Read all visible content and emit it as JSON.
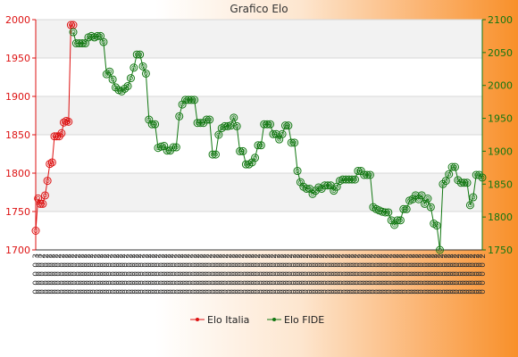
{
  "chart_data": {
    "type": "line",
    "title": "Grafico Elo",
    "legend_position": "bottom",
    "grid": true,
    "y_left": {
      "min": 1700,
      "max": 2000,
      "ticks": [
        1700,
        1750,
        1800,
        1850,
        1900,
        1950,
        2000
      ]
    },
    "y_right": {
      "min": 1750,
      "max": 2100,
      "ticks": [
        1750,
        1800,
        1850,
        1900,
        1950,
        2000,
        2050,
        2100
      ]
    },
    "series": [
      {
        "name": "Elo Italia",
        "axis": "left",
        "color": "#dd1111",
        "values": [
          1725,
          1767,
          1760,
          1760,
          1771,
          1790,
          1812,
          1814,
          1848,
          1848,
          1848,
          1852,
          1866,
          1868,
          1867,
          1993,
          1993
        ]
      },
      {
        "name": "Elo FIDE",
        "axis": "right",
        "color": "#117711",
        "values": [
          2081,
          2064,
          2064,
          2064,
          2064,
          2073,
          2075,
          2073,
          2075,
          2075,
          2066,
          2017,
          2021,
          2009,
          1997,
          1993,
          1991,
          1995,
          1999,
          2011,
          2027,
          2047,
          2047,
          2029,
          2018,
          1948,
          1941,
          1941,
          1905,
          1907,
          1908,
          1901,
          1901,
          1906,
          1906,
          1953,
          1971,
          1978,
          1978,
          1978,
          1978,
          1943,
          1943,
          1943,
          1948,
          1948,
          1895,
          1895,
          1925,
          1935,
          1938,
          1938,
          1939,
          1951,
          1938,
          1900,
          1900,
          1880,
          1880,
          1883,
          1890,
          1909,
          1909,
          1941,
          1941,
          1941,
          1926,
          1926,
          1918,
          1926,
          1939,
          1939,
          1913,
          1913,
          1870,
          1853,
          1846,
          1843,
          1843,
          1835,
          1840,
          1845,
          1843,
          1848,
          1848,
          1848,
          1840,
          1846,
          1855,
          1857,
          1857,
          1857,
          1857,
          1857,
          1870,
          1870,
          1864,
          1864,
          1864,
          1815,
          1812,
          1810,
          1808,
          1807,
          1807,
          1795,
          1788,
          1795,
          1795,
          1812,
          1812,
          1825,
          1827,
          1833,
          1827,
          1833,
          1820,
          1828,
          1815,
          1790,
          1787,
          1750,
          1850,
          1855,
          1865,
          1876,
          1876,
          1856,
          1852,
          1852,
          1852,
          1818,
          1830,
          1864,
          1864,
          1860
        ]
      }
    ],
    "x_labels": [
      "3",
      "3",
      "2",
      "2",
      "2",
      "2",
      "2",
      "2",
      "2",
      "2",
      "2",
      "2",
      "2",
      "2",
      "2",
      "2",
      "2",
      "2",
      "2",
      "2",
      "2",
      "2",
      "2",
      "2",
      "2",
      "2",
      "2",
      "2",
      "2",
      "2",
      "2",
      "2",
      "2",
      "2",
      "2",
      "2",
      "2",
      "2",
      "2",
      "2",
      "2",
      "2",
      "2",
      "2",
      "2",
      "2",
      "2",
      "2",
      "2",
      "2",
      "2",
      "2",
      "2",
      "2",
      "2",
      "2",
      "2",
      "2",
      "2",
      "2",
      "2",
      "2",
      "2",
      "2",
      "2",
      "2",
      "2",
      "2",
      "2",
      "2",
      "2",
      "2",
      "2",
      "2",
      "2",
      "2",
      "2",
      "2",
      "2",
      "2",
      "2",
      "2",
      "2",
      "2",
      "2",
      "2",
      "2",
      "2",
      "2",
      "2",
      "2",
      "2",
      "2",
      "2",
      "2",
      "2",
      "2",
      "2",
      "2",
      "2",
      "2",
      "2",
      "2",
      "2",
      "2",
      "2",
      "2",
      "2",
      "2",
      "2",
      "2",
      "2",
      "2",
      "2",
      "2",
      "2",
      "2",
      "2",
      "2",
      "2",
      "2",
      "2",
      "2",
      "2",
      "2",
      "2",
      "2",
      "2",
      "2",
      "2",
      "2",
      "2",
      "2",
      "2",
      "2",
      "2",
      "2",
      "2",
      "2",
      "2"
    ],
    "colors": {
      "left_axis": "#dd1111",
      "right_axis": "#117711",
      "band": "#f2f2f2",
      "gridline": "#d8d8d8"
    }
  }
}
